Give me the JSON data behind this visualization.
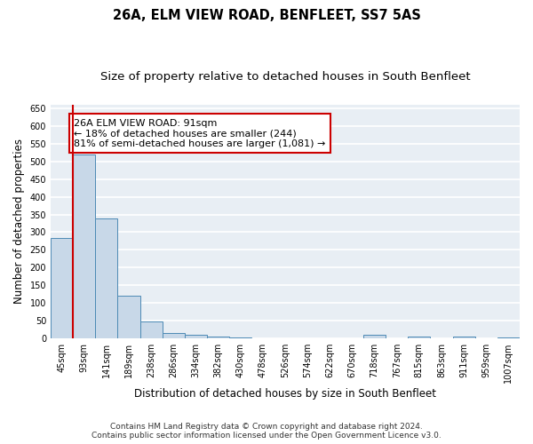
{
  "title": "26A, ELM VIEW ROAD, BENFLEET, SS7 5AS",
  "subtitle": "Size of property relative to detached houses in South Benfleet",
  "xlabel": "Distribution of detached houses by size in South Benfleet",
  "ylabel": "Number of detached properties",
  "categories": [
    "45sqm",
    "93sqm",
    "141sqm",
    "189sqm",
    "238sqm",
    "286sqm",
    "334sqm",
    "382sqm",
    "430sqm",
    "478sqm",
    "526sqm",
    "574sqm",
    "622sqm",
    "670sqm",
    "718sqm",
    "767sqm",
    "815sqm",
    "863sqm",
    "911sqm",
    "959sqm",
    "1007sqm"
  ],
  "values": [
    284,
    519,
    340,
    120,
    47,
    16,
    10,
    5,
    2,
    1,
    0,
    0,
    0,
    0,
    10,
    0,
    5,
    0,
    5,
    0,
    4
  ],
  "bar_color": "#c8d8e8",
  "bar_edge_color": "#4d8ab5",
  "annotation_text": "26A ELM VIEW ROAD: 91sqm\n← 18% of detached houses are smaller (244)\n81% of semi-detached houses are larger (1,081) →",
  "annotation_box_facecolor": "#ffffff",
  "annotation_border_color": "#cc0000",
  "vline_color": "#cc0000",
  "vline_x": 0.5,
  "ylim": [
    0,
    660
  ],
  "yticks": [
    0,
    50,
    100,
    150,
    200,
    250,
    300,
    350,
    400,
    450,
    500,
    550,
    600,
    650
  ],
  "footer_line1": "Contains HM Land Registry data © Crown copyright and database right 2024.",
  "footer_line2": "Contains public sector information licensed under the Open Government Licence v3.0.",
  "bg_color": "#ffffff",
  "plot_bg_color": "#e8eef4",
  "grid_color": "#ffffff",
  "title_fontsize": 10.5,
  "subtitle_fontsize": 9.5,
  "tick_fontsize": 7,
  "label_fontsize": 8.5,
  "annotation_fontsize": 8,
  "footer_fontsize": 6.5
}
